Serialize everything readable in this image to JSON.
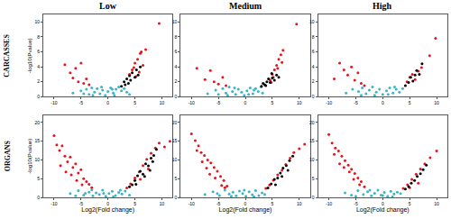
{
  "column_titles": [
    "Low",
    "Medium",
    "High"
  ],
  "row_titles": [
    "CARCASSES",
    "ORGANS"
  ],
  "chart_data": [
    {
      "type": "scatter",
      "y_label": "-log10(Pvalue)",
      "grid": false,
      "xlim": [
        -12,
        12
      ],
      "xticks": [
        -10,
        -5,
        0,
        5,
        10
      ],
      "ylim": [
        0,
        11
      ],
      "yticks": [
        0,
        2,
        4,
        6,
        8,
        10
      ],
      "series": [
        {
          "color": "#39b5c7",
          "x": [
            -6.5,
            -5,
            -4,
            -3.5,
            -3,
            -2.5,
            -2,
            -1.5,
            -1,
            -0.5,
            0,
            0.5,
            1,
            1.5,
            2,
            2.5,
            3,
            -4.5,
            -2.8,
            1.2,
            3.5,
            4,
            -1.2,
            0.8
          ],
          "y": [
            0.5,
            0.8,
            1.0,
            0.3,
            1.2,
            0.6,
            1.1,
            0.4,
            0.9,
            0.2,
            0.7,
            1.2,
            0.5,
            1.0,
            1.3,
            0.8,
            1.1,
            0.4,
            0.2,
            0.2,
            0.6,
            0.3,
            1.3,
            1.0
          ]
        },
        {
          "color": "#e8141c",
          "x": [
            -8,
            -7,
            -6.5,
            -6,
            -5.5,
            -5,
            -4.5,
            -4,
            -3.5,
            4,
            4.5,
            5,
            5.5,
            6,
            6.5,
            7,
            5.2,
            5.8,
            6.2,
            4.8,
            9.5
          ],
          "y": [
            4.3,
            3.2,
            2.5,
            3.8,
            2.0,
            4.5,
            1.8,
            2.4,
            1.6,
            3.0,
            3.6,
            4.5,
            5.0,
            5.8,
            4.2,
            6.3,
            2.7,
            3.3,
            6.0,
            3.9,
            9.8
          ]
        },
        {
          "color": "#000000",
          "x": [
            2.5,
            3,
            3.2,
            3.5,
            3.8,
            4,
            4.2,
            4.5,
            5,
            5.3,
            5.6,
            6
          ],
          "y": [
            1.4,
            2.0,
            1.6,
            2.4,
            1.8,
            2.8,
            2.2,
            3.2,
            2.6,
            3.6,
            2.9,
            4.0
          ]
        }
      ]
    },
    {
      "type": "scatter",
      "grid": false,
      "xlim": [
        -12,
        12
      ],
      "xticks": [
        -10,
        -5,
        0,
        5,
        10
      ],
      "ylim": [
        0,
        11
      ],
      "yticks": [
        0,
        2,
        4,
        6,
        8,
        10
      ],
      "series": [
        {
          "color": "#39b5c7",
          "x": [
            -7,
            -5.5,
            -4.2,
            -3.6,
            -3,
            -2.4,
            -1.8,
            -1.3,
            -0.7,
            -0.2,
            0.3,
            0.9,
            1.4,
            1.9,
            2.4,
            2.9,
            -5,
            -2,
            0.6,
            1.6,
            3.2,
            -3.3
          ],
          "y": [
            0.4,
            0.9,
            1.1,
            0.5,
            1.3,
            0.7,
            0.3,
            1.0,
            0.6,
            0.2,
            0.8,
            1.2,
            0.4,
            1.1,
            0.7,
            1.3,
            0.3,
            1.2,
            0.3,
            0.9,
            0.5,
            0.2
          ]
        },
        {
          "color": "#e8141c",
          "x": [
            -9,
            -7.5,
            -6.5,
            -5.8,
            -5,
            -4.2,
            -3.6,
            4.6,
            5,
            5.4,
            5.8,
            6.2,
            6.6,
            7,
            5.2,
            6,
            6.8,
            4.8,
            9.5
          ],
          "y": [
            3.8,
            2.3,
            3.5,
            2.0,
            1.7,
            2.6,
            1.5,
            2.2,
            3.0,
            3.6,
            4.2,
            5.0,
            5.6,
            6.2,
            2.6,
            3.8,
            4.6,
            1.9,
            9.7
          ]
        },
        {
          "color": "#000000",
          "x": [
            3,
            3.3,
            3.6,
            4,
            4.3,
            4.6,
            5,
            5.4,
            5.8,
            6.2,
            3.8,
            4.9
          ],
          "y": [
            1.4,
            1.8,
            1.6,
            2.0,
            2.4,
            1.9,
            2.5,
            2.2,
            2.9,
            2.6,
            1.5,
            3.1
          ]
        }
      ]
    },
    {
      "type": "scatter",
      "grid": false,
      "xlim": [
        -12,
        12
      ],
      "xticks": [
        -10,
        -5,
        0,
        5,
        10
      ],
      "ylim": [
        0,
        11
      ],
      "yticks": [
        0,
        2,
        4,
        6,
        8,
        10
      ],
      "series": [
        {
          "color": "#39b5c7",
          "x": [
            -6.8,
            -5.6,
            -4.5,
            -3.8,
            -3.1,
            -2.5,
            -1.9,
            -1.2,
            -0.6,
            0,
            0.7,
            1.3,
            1.9,
            2.5,
            3.1,
            3.7,
            -4,
            -1.5,
            1,
            2.2
          ],
          "y": [
            0.5,
            1.0,
            0.7,
            1.2,
            0.4,
            0.9,
            1.3,
            0.6,
            1.0,
            0.3,
            0.8,
            1.2,
            0.5,
            1.0,
            0.6,
            1.1,
            0.2,
            0.2,
            0.3,
            1.3
          ]
        },
        {
          "color": "#e8141c",
          "x": [
            -9,
            -8,
            -7.2,
            -6.5,
            -5.8,
            -5.2,
            -4.6,
            -4,
            -3.4,
            4.5,
            5,
            5.5,
            6,
            6.6,
            7.2,
            8.7,
            9.8
          ],
          "y": [
            2.4,
            4.5,
            3.6,
            2.9,
            4.0,
            2.2,
            3.2,
            1.8,
            1.5,
            2.0,
            2.6,
            3.0,
            2.3,
            3.4,
            3.9,
            5.5,
            7.8
          ]
        },
        {
          "color": "#000000",
          "x": [
            4.2,
            4.8,
            5.2,
            5.6,
            6,
            6.3,
            6.8,
            7.3
          ],
          "y": [
            1.5,
            1.9,
            2.6,
            2.1,
            2.9,
            3.5,
            3.0,
            4.4
          ]
        }
      ]
    },
    {
      "type": "scatter",
      "x_label": "Log2(Fold change)",
      "y_label": "-log10(Pvalue)",
      "grid": false,
      "xlim": [
        -12,
        12
      ],
      "xticks": [
        -10,
        -5,
        0,
        5,
        10
      ],
      "ylim": [
        0,
        22
      ],
      "yticks": [
        0,
        5,
        10,
        15,
        20
      ],
      "series": [
        {
          "color": "#39b5c7",
          "x": [
            -7,
            -5.5,
            -4.5,
            -3.5,
            -2.8,
            -2.2,
            -1.6,
            -1,
            -0.4,
            0.2,
            0.8,
            1.4,
            2,
            2.6,
            3.2,
            -6,
            -3,
            -0.8,
            1,
            2.3,
            4,
            -4.2
          ],
          "y": [
            1.0,
            1.8,
            0.6,
            1.4,
            0.4,
            1.2,
            0.8,
            1.9,
            0.3,
            1.0,
            1.6,
            0.5,
            1.3,
            0.9,
            1.7,
            0.4,
            2.0,
            1.1,
            0.2,
            1.9,
            0.6,
            1.1
          ]
        },
        {
          "color": "#e8141c",
          "x": [
            -10,
            -9.5,
            -9,
            -8.5,
            -8,
            -7.5,
            -7,
            -6.5,
            -6,
            -5.5,
            -5,
            -4.5,
            -4,
            -3.5,
            -3,
            -8.8,
            -7.8,
            -6.8,
            -5.8,
            -4.8,
            3.5,
            4.2,
            5,
            5.8,
            6.5,
            7.2,
            8,
            8.8,
            9.5,
            10.5,
            11.5,
            6,
            7.5
          ],
          "y": [
            16.5,
            14,
            12.5,
            13.8,
            11,
            9.5,
            10.8,
            8,
            9,
            6.5,
            7.4,
            5,
            4.2,
            3.5,
            2.6,
            8.5,
            6.8,
            6,
            4.5,
            3.4,
            2.5,
            3.6,
            5.2,
            6.8,
            8.5,
            10.2,
            11.8,
            13.2,
            14.5,
            13.5,
            15,
            4.8,
            7.6
          ]
        },
        {
          "color": "#000000",
          "x": [
            4,
            4.5,
            5,
            5.5,
            6,
            6.5,
            7,
            7.5,
            8,
            8.5,
            9,
            5.2,
            6.8,
            7.8,
            8.3
          ],
          "y": [
            2.8,
            3.4,
            4.5,
            5.8,
            7,
            6.2,
            9,
            8.4,
            10.5,
            11.2,
            12.8,
            3.5,
            5.6,
            7.2,
            9.6
          ]
        }
      ]
    },
    {
      "type": "scatter",
      "x_label": "Log2(Fold change)",
      "grid": false,
      "xlim": [
        -12,
        12
      ],
      "xticks": [
        -10,
        -5,
        0,
        5,
        10
      ],
      "ylim": [
        0,
        22
      ],
      "yticks": [
        0,
        5,
        10,
        15,
        20
      ],
      "series": [
        {
          "color": "#39b5c7",
          "x": [
            -7.5,
            -6,
            -4.8,
            -3.8,
            -3,
            -2.3,
            -1.7,
            -1.1,
            -0.5,
            0.1,
            0.7,
            1.3,
            1.9,
            2.5,
            3.1,
            -5.2,
            -2.6,
            -0.2,
            1.6,
            3.6
          ],
          "y": [
            0.8,
            1.5,
            0.5,
            1.9,
            0.9,
            1.4,
            0.4,
            1.7,
            1.0,
            0.3,
            1.5,
            0.7,
            1.8,
            0.5,
            1.2,
            1.0,
            0.3,
            1.9,
            0.2,
            0.8
          ]
        },
        {
          "color": "#e8141c",
          "x": [
            -10,
            -9.3,
            -8.7,
            -8.2,
            -7.6,
            -7,
            -6.4,
            -5.8,
            -5.2,
            -4.6,
            -4,
            -3.4,
            -9,
            -8,
            -7.2,
            -6.6,
            -5.6,
            -4.4,
            -3.8,
            3.8,
            4.5,
            5.2,
            6,
            6.8,
            7.5,
            8.3,
            9,
            10,
            11
          ],
          "y": [
            17,
            15.2,
            13.8,
            12,
            11.2,
            10,
            9.2,
            8,
            7,
            5.6,
            4.5,
            3,
            12.5,
            9.5,
            7.8,
            6.2,
            5.2,
            3.2,
            2.6,
            2.4,
            3.3,
            4.6,
            6,
            7.2,
            8.8,
            10.5,
            12,
            13,
            14.2
          ]
        },
        {
          "color": "#000000",
          "x": [
            4.2,
            4.8,
            5.4,
            6,
            6.5,
            7,
            7.6,
            8.2,
            8.8,
            5.6,
            6.8,
            7.9
          ],
          "y": [
            2.5,
            3.6,
            4.8,
            5.2,
            6.5,
            7.8,
            8.5,
            9.8,
            11,
            3.4,
            5.6,
            7.2
          ]
        }
      ]
    },
    {
      "type": "scatter",
      "x_label": "Log2(Fold change)",
      "grid": false,
      "xlim": [
        -12,
        12
      ],
      "xticks": [
        -10,
        -5,
        0,
        5,
        10
      ],
      "ylim": [
        0,
        22
      ],
      "yticks": [
        0,
        5,
        10,
        15,
        20
      ],
      "series": [
        {
          "color": "#39b5c7",
          "x": [
            -7,
            -5.8,
            -4.6,
            -3.6,
            -2.8,
            -2.1,
            -1.5,
            -0.9,
            -0.3,
            0.3,
            0.9,
            1.5,
            2.1,
            2.7,
            -5,
            -2.4,
            0,
            1.8,
            3.3
          ],
          "y": [
            1.2,
            0.6,
            1.8,
            0.8,
            1.5,
            0.4,
            1.1,
            1.9,
            0.6,
            1.3,
            0.3,
            1.6,
            0.9,
            1.4,
            0.3,
            1.9,
            0.5,
            0.2,
            1.0
          ]
        },
        {
          "color": "#e8141c",
          "x": [
            -10,
            -9.4,
            -8.8,
            -8.2,
            -7.6,
            -7,
            -6.4,
            -5.8,
            -5.2,
            -4.6,
            -4,
            -3.4,
            -9,
            -8,
            -7.2,
            -6.2,
            -5.4,
            -4.3,
            3.8,
            4.6,
            5.4,
            6.2,
            7,
            7.8,
            8.8,
            10,
            6.6,
            5
          ],
          "y": [
            16.8,
            14.5,
            13.2,
            12.4,
            11,
            9.8,
            8.6,
            7.5,
            6.4,
            5.2,
            4.2,
            2.8,
            11.5,
            9,
            8,
            6.8,
            4.8,
            3.4,
            2.4,
            3.4,
            4.8,
            6.2,
            7.6,
            9,
            10.6,
            12.4,
            3.8,
            2.6
          ]
        },
        {
          "color": "#000000",
          "x": [
            4.2,
            4.8,
            5.3,
            5.9,
            6.4,
            7,
            7.5,
            8.1
          ],
          "y": [
            2.2,
            2.9,
            3.8,
            4.5,
            5.6,
            6.3,
            7.4,
            8.6
          ]
        }
      ]
    }
  ]
}
